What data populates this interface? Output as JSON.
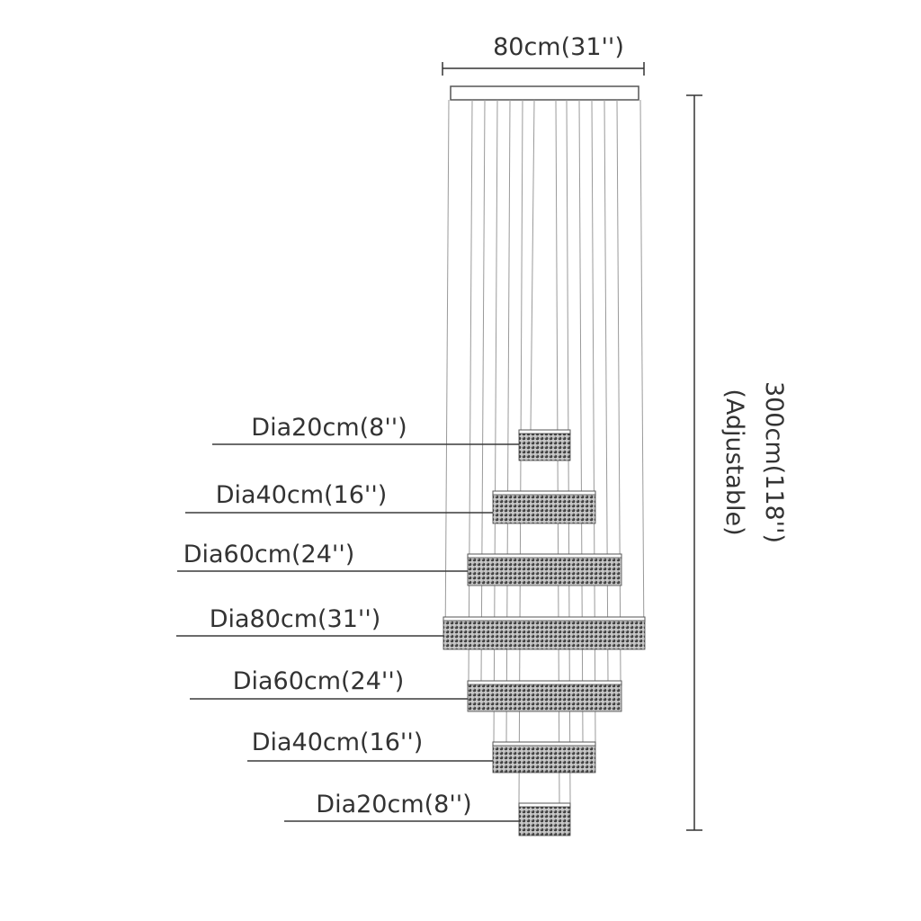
{
  "top_width_label": "80cm(31'')",
  "height_label": "300cm(118'')",
  "height_note": "(Adjustable)",
  "tiers": [
    {
      "label": "Dia20cm(8'')"
    },
    {
      "label": "Dia40cm(16'')"
    },
    {
      "label": "Dia60cm(24'')"
    },
    {
      "label": "Dia80cm(31'')"
    },
    {
      "label": "Dia60cm(24'')"
    },
    {
      "label": "Dia40cm(16'')"
    },
    {
      "label": "Dia20cm(8'')"
    }
  ],
  "colors": {
    "crystal_dark": "#3c3c3c",
    "crystal_light": "#cfcfcf",
    "line": "#333333"
  }
}
